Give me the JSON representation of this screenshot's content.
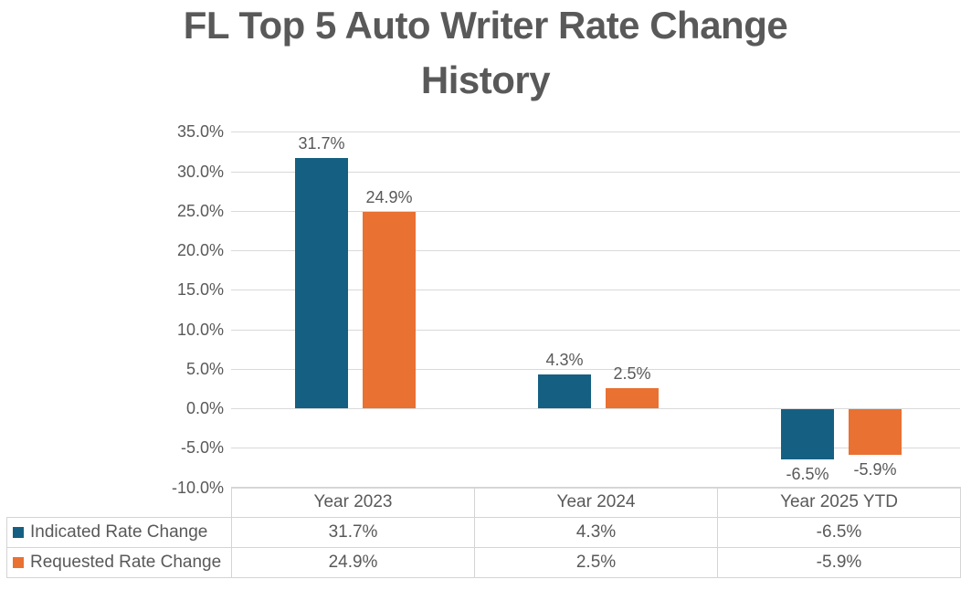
{
  "title": {
    "line1": "FL Top 5 Auto Writer Rate Change",
    "line2": "History"
  },
  "chart_data": {
    "type": "bar",
    "title": "FL Top 5 Auto Writer Rate Change History",
    "categories": [
      "Year 2023",
      "Year 2024",
      "Year 2025 YTD"
    ],
    "series": [
      {
        "name": "Indicated Rate Change",
        "color": "#156082",
        "values": [
          31.7,
          4.3,
          -6.5
        ],
        "value_labels": [
          "31.7%",
          "4.3%",
          "-6.5%"
        ]
      },
      {
        "name": "Requested Rate Change",
        "color": "#E97132",
        "values": [
          24.9,
          2.5,
          -5.9
        ],
        "value_labels": [
          "24.9%",
          "2.5%",
          "-5.9%"
        ]
      }
    ],
    "y_axis": {
      "min": -10,
      "max": 35,
      "step": 5,
      "tick_labels": [
        "35.0%",
        "30.0%",
        "25.0%",
        "20.0%",
        "15.0%",
        "10.0%",
        "5.0%",
        "0.0%",
        "-5.0%",
        "-10.0%"
      ]
    },
    "xlabel": "",
    "ylabel": "",
    "grid": true,
    "legend_position": "data-table-left",
    "data_table_shown": true
  },
  "colors": {
    "series_indicated": "#156082",
    "series_requested": "#E97132",
    "text": "#595959",
    "gridline": "#D9D9D9",
    "table_border": "#D4D4D4",
    "background": "#FFFFFF"
  }
}
